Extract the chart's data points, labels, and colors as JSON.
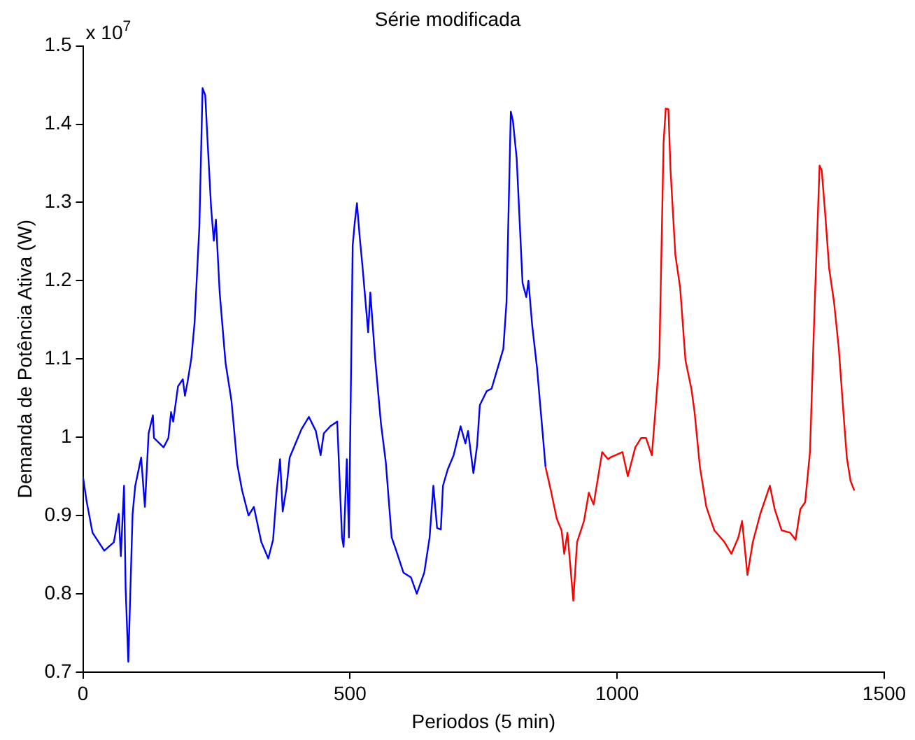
{
  "chart_data": {
    "type": "line",
    "title": "Série modificada",
    "xlabel": "Periodos (5 min)",
    "ylabel": "Demanda de Potência Ativa (W)",
    "annotations": [
      "x 10$^{7}$"
    ],
    "xlim": [
      0,
      1500
    ],
    "xticks": [
      0,
      500,
      1000,
      1500
    ],
    "ylim": [
      0.7,
      1.5
    ],
    "yticks": [
      0.7,
      0.8,
      0.9,
      1,
      1.1,
      1.2,
      1.3,
      1.4,
      1.5
    ],
    "grid": false,
    "legend": false,
    "marker": "none",
    "line_style": "solid",
    "series": [
      {
        "color": "#0000ff",
        "x": [
          0,
          7,
          18,
          40,
          58,
          67,
          71,
          77,
          80,
          85,
          93,
          98,
          109,
          116,
          123,
          131,
          133,
          151,
          160,
          165,
          169,
          178,
          187,
          191,
          196,
          203,
          209,
          218,
          224,
          229,
          233,
          240,
          245,
          249,
          256,
          267,
          278,
          289,
          298,
          310,
          320,
          334,
          347,
          356,
          363,
          369,
          374,
          381,
          387,
          398,
          409,
          423,
          436,
          445,
          451,
          463,
          476,
          485,
          488,
          494,
          498,
          505,
          509,
          513,
          518,
          523,
          534,
          538,
          547,
          558,
          567,
          578,
          587,
          600,
          614,
          625,
          639,
          649,
          656,
          663,
          670,
          674,
          683,
          694,
          707,
          716,
          721,
          731,
          738,
          743,
          756,
          765,
          778,
          787,
          793,
          801,
          805,
          812,
          823,
          830,
          834,
          841,
          850,
          860,
          866
        ],
        "values": [
          0.95,
          0.918,
          0.878,
          0.855,
          0.866,
          0.902,
          0.848,
          0.938,
          0.806,
          0.713,
          0.902,
          0.938,
          0.974,
          0.911,
          1.005,
          1.028,
          0.999,
          0.987,
          0.999,
          1.032,
          1.02,
          1.065,
          1.074,
          1.053,
          1.071,
          1.101,
          1.146,
          1.269,
          1.446,
          1.437,
          1.383,
          1.293,
          1.251,
          1.278,
          1.185,
          1.095,
          1.047,
          0.965,
          0.932,
          0.9,
          0.911,
          0.866,
          0.845,
          0.869,
          0.932,
          0.972,
          0.905,
          0.935,
          0.974,
          0.992,
          1.01,
          1.026,
          1.008,
          0.977,
          1.005,
          1.014,
          1.02,
          0.872,
          0.86,
          0.972,
          0.872,
          1.245,
          1.275,
          1.299,
          1.257,
          1.221,
          1.134,
          1.185,
          1.101,
          1.017,
          0.968,
          0.872,
          0.854,
          0.827,
          0.821,
          0.8,
          0.827,
          0.872,
          0.938,
          0.884,
          0.882,
          0.938,
          0.959,
          0.977,
          1.014,
          0.992,
          1.008,
          0.954,
          0.99,
          1.041,
          1.059,
          1.062,
          1.092,
          1.113,
          1.173,
          1.416,
          1.404,
          1.356,
          1.197,
          1.179,
          1.2,
          1.143,
          1.089,
          1.01,
          0.962
        ]
      },
      {
        "color": "#ff0000",
        "x": [
          866,
          876,
          887,
          896,
          901,
          907,
          918,
          925,
          938,
          947,
          956,
          972,
          983,
          987,
          1010,
          1020,
          1034,
          1045,
          1054,
          1065,
          1072,
          1079,
          1087,
          1091,
          1096,
          1100,
          1109,
          1118,
          1128,
          1139,
          1145,
          1155,
          1167,
          1182,
          1201,
          1214,
          1227,
          1234,
          1244,
          1254,
          1268,
          1286,
          1295,
          1308,
          1324,
          1334,
          1343,
          1352,
          1361,
          1370,
          1379,
          1383,
          1390,
          1397,
          1406,
          1415,
          1424,
          1430,
          1437,
          1444
        ],
        "values": [
          0.962,
          0.932,
          0.896,
          0.881,
          0.851,
          0.878,
          0.791,
          0.866,
          0.893,
          0.929,
          0.914,
          0.981,
          0.972,
          0.974,
          0.981,
          0.95,
          0.987,
          0.999,
          0.999,
          0.977,
          1.037,
          1.101,
          1.377,
          1.42,
          1.419,
          1.341,
          1.233,
          1.191,
          1.098,
          1.062,
          1.032,
          0.962,
          0.911,
          0.881,
          0.866,
          0.851,
          0.872,
          0.893,
          0.824,
          0.866,
          0.902,
          0.938,
          0.908,
          0.881,
          0.878,
          0.869,
          0.908,
          0.917,
          0.981,
          1.173,
          1.347,
          1.341,
          1.281,
          1.215,
          1.173,
          1.113,
          1.028,
          0.974,
          0.944,
          0.932
        ]
      }
    ]
  }
}
